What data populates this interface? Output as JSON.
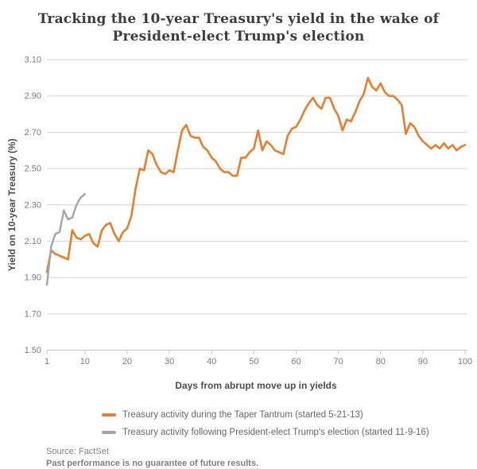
{
  "header": {
    "title_line1": "Tracking the 10-year Treasury's yield in the wake of",
    "title_line2": "President-elect Trump's election"
  },
  "footer": {
    "source": "Source: FactSet",
    "disclaimer": "Past performance is no guarantee of future results."
  },
  "colors": {
    "taper_tantrum_line": "#e87e2b",
    "trump_election_line": "#a2a4a7",
    "gridline": "#d4d4d4",
    "axis_line": "#c4c4c4",
    "tick_label": "#7a7a7a",
    "axis_title": "#4d4d4d",
    "title_text": "#3c3c3c",
    "legend_text": "#666666",
    "footer_text": "#7f7f7f"
  },
  "chart_data": {
    "type": "line",
    "title": "Tracking the 10-year Treasury's yield in the wake of President-elect Trump's election",
    "xlabel": "Days from abrupt move up in yields",
    "ylabel": "Yield on 10-year Treasury (%)",
    "xlim": [
      1,
      100
    ],
    "ylim": [
      1.5,
      3.1
    ],
    "xticks": [
      1,
      10,
      20,
      30,
      40,
      50,
      60,
      70,
      80,
      90,
      100
    ],
    "ytick_labels": [
      "1.50",
      "1.70",
      "1.90",
      "2.10",
      "2.30",
      "2.50",
      "2.70",
      "2.90",
      "3.10"
    ],
    "grid": "horizontal",
    "legend_position": "bottom",
    "series": [
      {
        "name": "Treasury activity during the Taper Tantrum (started 5-21-13)",
        "color": "#e87e2b",
        "x_start": 1,
        "values": [
          1.93,
          2.05,
          2.03,
          2.02,
          2.01,
          2.0,
          2.16,
          2.12,
          2.11,
          2.13,
          2.14,
          2.09,
          2.07,
          2.16,
          2.19,
          2.2,
          2.14,
          2.1,
          2.15,
          2.17,
          2.24,
          2.39,
          2.5,
          2.49,
          2.6,
          2.58,
          2.52,
          2.48,
          2.47,
          2.49,
          2.48,
          2.6,
          2.71,
          2.74,
          2.68,
          2.67,
          2.67,
          2.62,
          2.6,
          2.56,
          2.54,
          2.5,
          2.48,
          2.48,
          2.46,
          2.46,
          2.56,
          2.56,
          2.59,
          2.61,
          2.71,
          2.6,
          2.65,
          2.63,
          2.6,
          2.59,
          2.58,
          2.68,
          2.72,
          2.73,
          2.77,
          2.82,
          2.86,
          2.89,
          2.85,
          2.83,
          2.89,
          2.89,
          2.83,
          2.79,
          2.71,
          2.77,
          2.76,
          2.81,
          2.87,
          2.91,
          3.0,
          2.95,
          2.93,
          2.97,
          2.92,
          2.9,
          2.9,
          2.88,
          2.85,
          2.69,
          2.75,
          2.73,
          2.68,
          2.65,
          2.63,
          2.61,
          2.63,
          2.61,
          2.64,
          2.61,
          2.63,
          2.6,
          2.62,
          2.63
        ]
      },
      {
        "name": "Treasury activity following President-elect Trump's election (started 11-9-16)",
        "color": "#a2a4a7",
        "x_start": 1,
        "values": [
          1.86,
          2.07,
          2.14,
          2.15,
          2.27,
          2.22,
          2.23,
          2.3,
          2.34,
          2.36
        ]
      }
    ]
  }
}
